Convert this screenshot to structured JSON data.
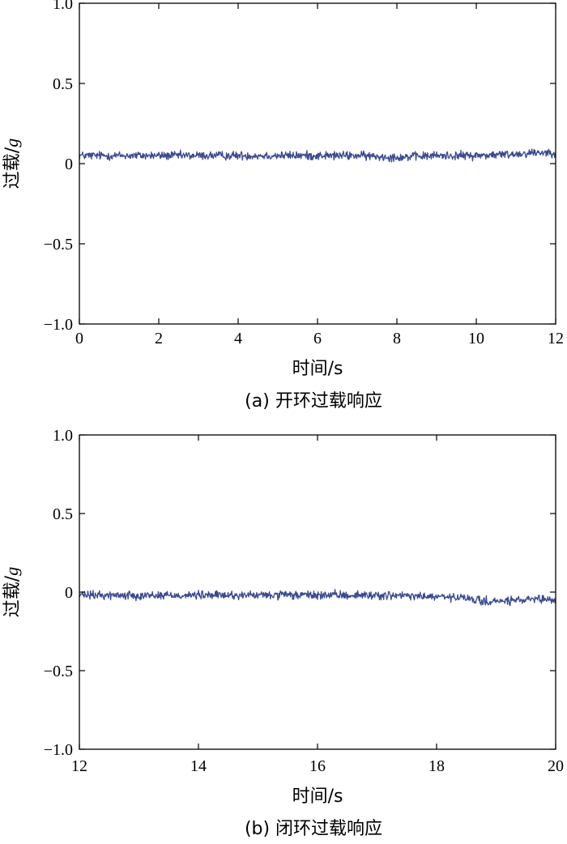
{
  "chart_data": [
    {
      "type": "line",
      "caption": "(a) 开环过载响应",
      "xlabel": "时间/s",
      "ylabel_main": "过载/",
      "ylabel_unit": "g",
      "xlim": [
        0,
        12
      ],
      "ylim": [
        -1.0,
        1.0
      ],
      "xticks": [
        0,
        2,
        4,
        6,
        8,
        10,
        12
      ],
      "xtick_labels": [
        "0",
        "2",
        "4",
        "6",
        "8",
        "10",
        "12"
      ],
      "yticks": [
        1.0,
        0.5,
        0,
        -0.5,
        -1.0
      ],
      "ytick_labels": [
        "1.0",
        "0.5",
        "0",
        "−0.5",
        "−1.0"
      ],
      "grid": false,
      "line_color": "#3a4a8f",
      "series": [
        {
          "x": [
            0,
            1,
            2,
            3,
            4,
            5,
            6,
            7,
            8,
            9,
            10,
            11,
            11.5,
            12
          ],
          "y": [
            0.05,
            0.05,
            0.05,
            0.05,
            0.05,
            0.05,
            0.05,
            0.05,
            0.04,
            0.05,
            0.05,
            0.06,
            0.07,
            0.07
          ],
          "noise_amplitude": 0.04
        }
      ]
    },
    {
      "type": "line",
      "caption": "(b) 闭环过载响应",
      "xlabel": "时间/s",
      "ylabel_main": "过载/",
      "ylabel_unit": "g",
      "xlim": [
        12,
        20
      ],
      "ylim": [
        -1.0,
        1.0
      ],
      "xticks": [
        12,
        14,
        16,
        18,
        20
      ],
      "xtick_labels": [
        "12",
        "14",
        "16",
        "18",
        "20"
      ],
      "yticks": [
        1.0,
        0.5,
        0,
        -0.5,
        -1.0
      ],
      "ytick_labels": [
        "1.0",
        "0.5",
        "0",
        "−0.5",
        "−1.0"
      ],
      "grid": false,
      "line_color": "#3a4a8f",
      "series": [
        {
          "x": [
            12,
            13,
            14,
            15,
            16,
            17,
            18,
            18.5,
            18.8,
            19,
            19.5,
            20
          ],
          "y": [
            -0.02,
            -0.02,
            -0.02,
            -0.02,
            -0.02,
            -0.02,
            -0.03,
            -0.04,
            -0.06,
            -0.06,
            -0.05,
            -0.05
          ],
          "noise_amplitude": 0.04
        }
      ]
    }
  ]
}
